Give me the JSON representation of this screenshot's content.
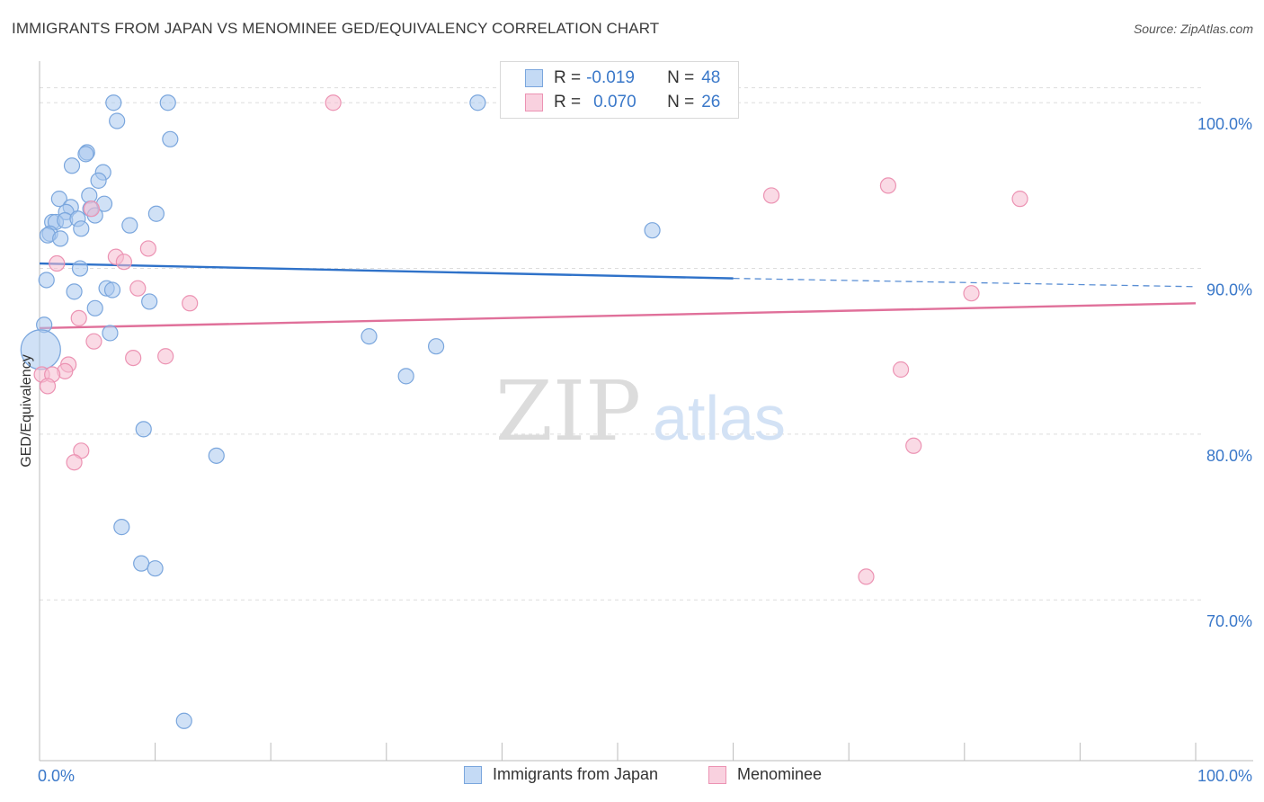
{
  "header": {
    "title": "IMMIGRANTS FROM JAPAN VS MENOMINEE GED/EQUIVALENCY CORRELATION CHART",
    "source": "Source: ZipAtlas.com"
  },
  "watermark": {
    "zip": "ZIP",
    "atlas": "atlas"
  },
  "legend_top": {
    "rows": [
      {
        "r_label": "R =",
        "r_value": "-0.019",
        "n_label": "N =",
        "n_value": "48"
      },
      {
        "r_label": "R =",
        "r_value": "0.070",
        "n_label": "N =",
        "n_value": "26"
      }
    ]
  },
  "legend_bottom": {
    "items": [
      {
        "label": "Immigrants from Japan"
      },
      {
        "label": "Menominee"
      }
    ]
  },
  "colors": {
    "blue_fill": "#a9c8ef",
    "blue_stroke": "#7aa6dd",
    "blue_line": "#2f72c9",
    "pink_fill": "#f6bcd0",
    "pink_stroke": "#ec93b3",
    "pink_line": "#e0709a",
    "tick_label": "#3a78c9",
    "grid": "#dddddd",
    "axis": "#bbbbbb"
  },
  "chart_data": {
    "type": "scatter",
    "title": "IMMIGRANTS FROM JAPAN VS MENOMINEE GED/EQUIVALENCY CORRELATION CHART",
    "xlabel": "",
    "ylabel": "GED/Equivalency",
    "xlim": [
      0,
      100
    ],
    "ylim": [
      60.3,
      102.4
    ],
    "x_tick_labels": [
      "0.0%",
      "100.0%"
    ],
    "y_ticks": [
      70,
      80,
      90,
      100
    ],
    "y_tick_labels": [
      "70.0%",
      "80.0%",
      "90.0%",
      "100.0%"
    ],
    "grid": true,
    "legend_position": "top-center",
    "series": [
      {
        "name": "Immigrants from Japan",
        "color": "#a9c8ef",
        "r": -0.019,
        "n": 48,
        "trend": {
          "x": [
            0,
            60,
            100
          ],
          "y": [
            90.3,
            89.4,
            88.9
          ],
          "solid_until": 60
        },
        "points": [
          {
            "x": 6.4,
            "y": 100.0
          },
          {
            "x": 11.1,
            "y": 100.0
          },
          {
            "x": 37.9,
            "y": 100.0
          },
          {
            "x": 43.0,
            "y": 100.0
          },
          {
            "x": 6.7,
            "y": 98.9
          },
          {
            "x": 11.3,
            "y": 97.8
          },
          {
            "x": 4.1,
            "y": 97.0
          },
          {
            "x": 4.0,
            "y": 96.9
          },
          {
            "x": 2.8,
            "y": 96.2
          },
          {
            "x": 5.5,
            "y": 95.8
          },
          {
            "x": 5.1,
            "y": 95.3
          },
          {
            "x": 1.7,
            "y": 94.2
          },
          {
            "x": 4.3,
            "y": 94.4
          },
          {
            "x": 5.6,
            "y": 93.9
          },
          {
            "x": 2.7,
            "y": 93.7
          },
          {
            "x": 2.3,
            "y": 93.4
          },
          {
            "x": 4.4,
            "y": 93.6
          },
          {
            "x": 4.8,
            "y": 93.2
          },
          {
            "x": 10.1,
            "y": 93.3
          },
          {
            "x": 1.1,
            "y": 92.8
          },
          {
            "x": 1.4,
            "y": 92.8
          },
          {
            "x": 2.2,
            "y": 92.9
          },
          {
            "x": 3.3,
            "y": 93.0
          },
          {
            "x": 7.8,
            "y": 92.6
          },
          {
            "x": 3.6,
            "y": 92.4
          },
          {
            "x": 0.9,
            "y": 92.1
          },
          {
            "x": 0.7,
            "y": 92.0
          },
          {
            "x": 1.8,
            "y": 91.8
          },
          {
            "x": 53.0,
            "y": 92.3
          },
          {
            "x": 3.5,
            "y": 90.0
          },
          {
            "x": 0.6,
            "y": 89.3
          },
          {
            "x": 3.0,
            "y": 88.6
          },
          {
            "x": 5.8,
            "y": 88.8
          },
          {
            "x": 6.3,
            "y": 88.7
          },
          {
            "x": 9.5,
            "y": 88.0
          },
          {
            "x": 4.8,
            "y": 87.6
          },
          {
            "x": 0.4,
            "y": 86.6
          },
          {
            "x": 6.1,
            "y": 86.1
          },
          {
            "x": 28.5,
            "y": 85.9
          },
          {
            "x": 34.3,
            "y": 85.3
          },
          {
            "x": 0.1,
            "y": 85.1,
            "size": "large"
          },
          {
            "x": 31.7,
            "y": 83.5
          },
          {
            "x": 9.0,
            "y": 80.3
          },
          {
            "x": 15.3,
            "y": 78.7
          },
          {
            "x": 7.1,
            "y": 74.4
          },
          {
            "x": 8.8,
            "y": 72.2
          },
          {
            "x": 10.0,
            "y": 71.9
          },
          {
            "x": 12.5,
            "y": 62.7
          }
        ]
      },
      {
        "name": "Menominee",
        "color": "#f6bcd0",
        "r": 0.07,
        "n": 26,
        "trend": {
          "x": [
            0,
            100
          ],
          "y": [
            86.4,
            87.9
          ]
        },
        "points": [
          {
            "x": 25.4,
            "y": 100.0
          },
          {
            "x": 73.4,
            "y": 95.0
          },
          {
            "x": 63.3,
            "y": 94.4
          },
          {
            "x": 84.8,
            "y": 94.2
          },
          {
            "x": 4.5,
            "y": 93.6
          },
          {
            "x": 9.4,
            "y": 91.2
          },
          {
            "x": 6.6,
            "y": 90.7
          },
          {
            "x": 7.3,
            "y": 90.4
          },
          {
            "x": 1.5,
            "y": 90.3
          },
          {
            "x": 8.5,
            "y": 88.8
          },
          {
            "x": 80.6,
            "y": 88.5
          },
          {
            "x": 13.0,
            "y": 87.9
          },
          {
            "x": 3.4,
            "y": 87.0
          },
          {
            "x": 4.7,
            "y": 85.6
          },
          {
            "x": 8.1,
            "y": 84.6
          },
          {
            "x": 10.9,
            "y": 84.7
          },
          {
            "x": 2.5,
            "y": 84.2
          },
          {
            "x": 2.2,
            "y": 83.8
          },
          {
            "x": 74.5,
            "y": 83.9
          },
          {
            "x": 0.2,
            "y": 83.6
          },
          {
            "x": 1.1,
            "y": 83.6
          },
          {
            "x": 0.7,
            "y": 82.9
          },
          {
            "x": 75.6,
            "y": 79.3
          },
          {
            "x": 3.6,
            "y": 79.0
          },
          {
            "x": 3.0,
            "y": 78.3
          },
          {
            "x": 71.5,
            "y": 71.4
          }
        ]
      }
    ]
  }
}
